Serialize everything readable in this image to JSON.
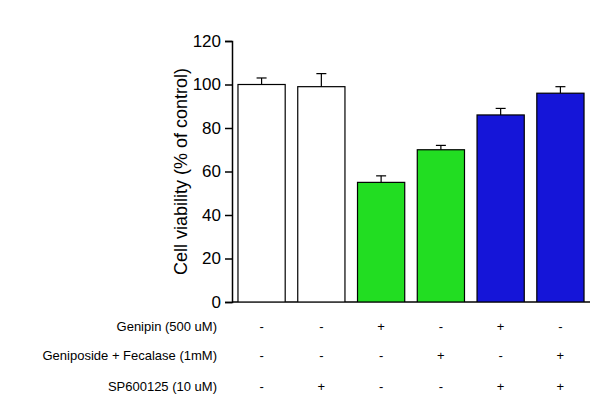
{
  "chart_data": {
    "type": "bar",
    "y_label": "Cell viability (% of control)",
    "categories": [
      null,
      null,
      null,
      null,
      null,
      null
    ],
    "values": [
      100,
      99,
      55,
      70,
      86,
      96
    ],
    "errors": [
      3,
      6,
      3,
      2,
      3,
      3
    ],
    "colors": [
      "#ffffff",
      "#ffffff",
      "#22dd22",
      "#22dd22",
      "#1515d8",
      "#1515d8"
    ],
    "ylim": [
      0,
      120
    ],
    "yticks": [
      0,
      20,
      40,
      60,
      80,
      100,
      120
    ],
    "tick_labels": "y",
    "treatments": [
      {
        "label": "Genipin (500 uM)",
        "marks": [
          "-",
          "-",
          "+",
          "-",
          "+",
          "-"
        ]
      },
      {
        "label": "Geniposide + Fecalase (1mM)",
        "marks": [
          "-",
          "-",
          "-",
          "+",
          "-",
          "+"
        ]
      },
      {
        "label": "SP600125 (10 uM)",
        "marks": [
          "-",
          "+",
          "-",
          "-",
          "+",
          "+"
        ]
      }
    ]
  }
}
